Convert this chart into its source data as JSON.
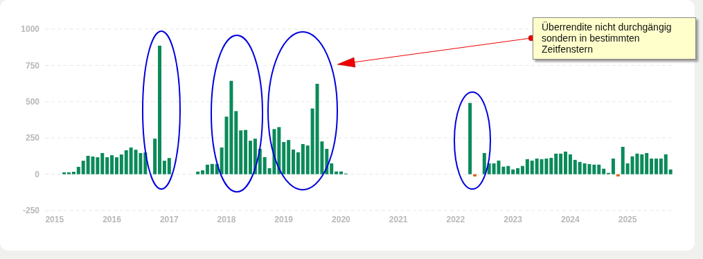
{
  "chart_data": {
    "type": "bar",
    "series": [
      {
        "color": "#0b8a5a",
        "x": [
          "2015-03",
          "2015-04",
          "2015-05",
          "2015-06",
          "2015-07",
          "2015-08",
          "2015-09",
          "2015-10",
          "2015-11",
          "2015-12",
          "2016-01",
          "2016-02",
          "2016-03",
          "2016-04",
          "2016-05",
          "2016-06",
          "2016-07",
          "2016-08",
          "2016-10",
          "2016-11",
          "2016-12",
          "2017-01",
          "2017-07",
          "2017-08",
          "2017-09",
          "2017-10",
          "2017-11",
          "2017-12",
          "2018-01",
          "2018-02",
          "2018-03",
          "2018-04",
          "2018-05",
          "2018-06",
          "2018-07",
          "2018-08",
          "2018-09",
          "2018-10",
          "2018-11",
          "2018-12",
          "2019-01",
          "2019-02",
          "2019-03",
          "2019-04",
          "2019-05",
          "2019-06",
          "2019-07",
          "2019-08",
          "2019-09",
          "2019-10",
          "2019-11",
          "2019-12",
          "2020-01",
          "2020-02",
          "2022-04",
          "2022-07",
          "2022-08",
          "2022-09",
          "2022-10",
          "2022-11",
          "2022-12",
          "2023-01",
          "2023-02",
          "2023-03",
          "2023-04",
          "2023-05",
          "2023-06",
          "2023-07",
          "2023-08",
          "2023-09",
          "2023-10",
          "2023-11",
          "2023-12",
          "2024-01",
          "2024-02",
          "2024-03",
          "2024-04",
          "2024-05",
          "2024-06",
          "2024-07",
          "2024-08",
          "2024-09",
          "2024-10",
          "2024-12",
          "2025-01",
          "2025-02",
          "2025-03",
          "2025-04",
          "2025-05",
          "2025-06",
          "2025-07",
          "2025-08",
          "2025-09",
          "2025-10"
        ],
        "values": [
          13,
          13,
          17,
          51,
          93,
          127,
          122,
          117,
          146,
          117,
          131,
          117,
          136,
          165,
          184,
          169,
          146,
          150,
          245,
          886,
          93,
          112,
          18,
          27,
          66,
          71,
          71,
          184,
          397,
          643,
          435,
          302,
          305,
          231,
          245,
          175,
          118,
          42,
          311,
          325,
          222,
          236,
          170,
          151,
          208,
          198,
          453,
          623,
          226,
          175,
          75,
          19,
          19,
          5,
          491,
          146,
          75,
          75,
          94,
          52,
          57,
          33,
          42,
          57,
          104,
          94,
          108,
          104,
          108,
          113,
          142,
          142,
          156,
          137,
          99,
          85,
          75,
          70,
          66,
          66,
          38,
          9,
          108,
          189,
          75,
          123,
          142,
          137,
          146,
          108,
          108,
          108,
          137,
          33
        ]
      },
      {
        "color": "#e0601a",
        "x": [
          "2022-05",
          "2024-11"
        ],
        "values": [
          -15,
          -15
        ]
      }
    ],
    "xlim": [
      "2014-11",
      "2025-11"
    ],
    "xticks": [
      "2015",
      "2016",
      "2017",
      "2018",
      "2019",
      "2020",
      "2021",
      "2022",
      "2023",
      "2024",
      "2025"
    ],
    "ylim": [
      -250,
      1000
    ],
    "yticks": [
      -250,
      0,
      250,
      500,
      750,
      1000
    ],
    "grid": "y",
    "annotations": [
      "Überrendite nicht durchgängig sondern in bestimmten Zeitfenstern"
    ]
  }
}
